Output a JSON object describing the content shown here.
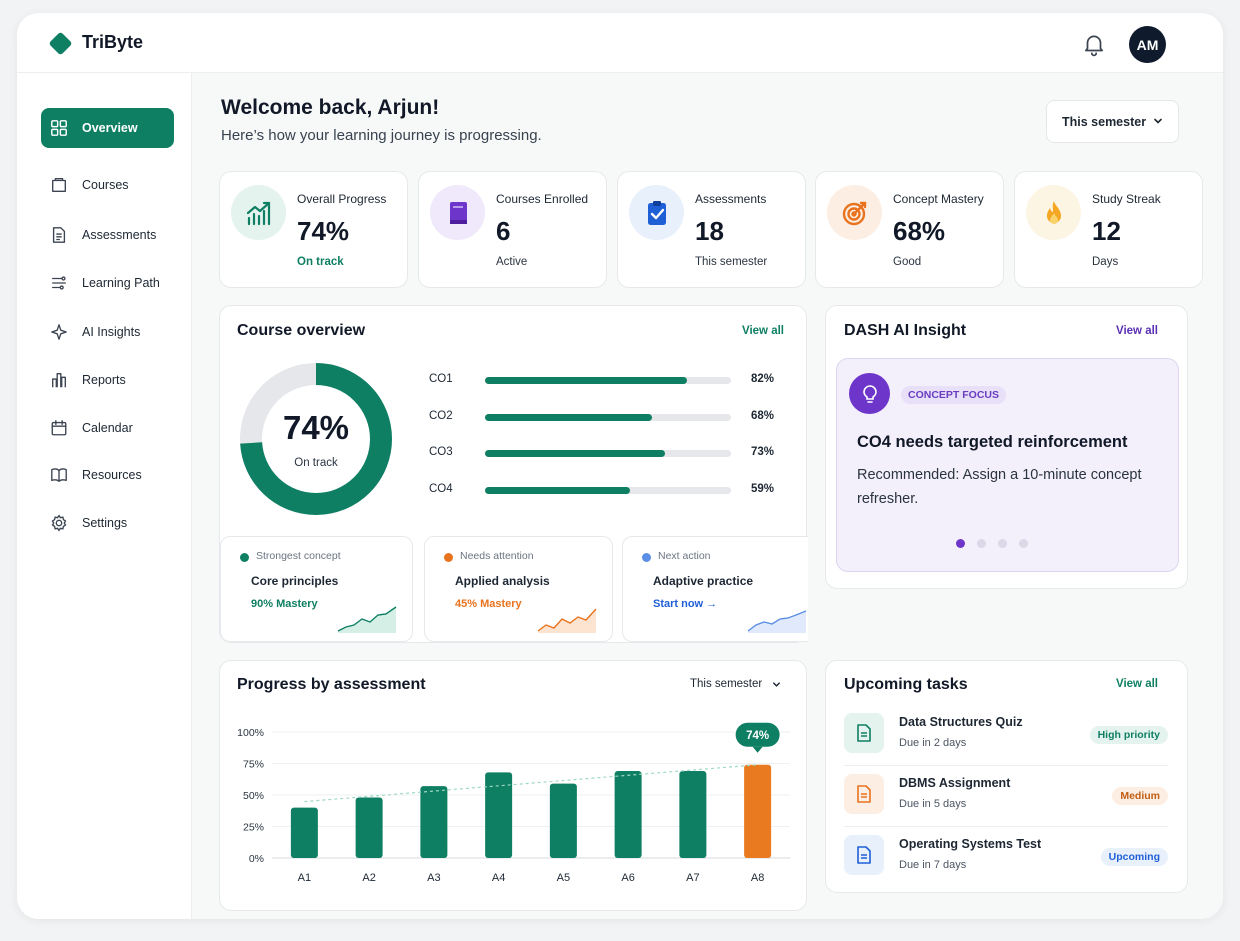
{
  "app": {
    "name": "TriByte",
    "avatar_initials": "AM"
  },
  "sidebar": {
    "items": [
      {
        "label": "Overview",
        "icon": "grid-icon",
        "active": true
      },
      {
        "label": "Courses",
        "icon": "folder-icon"
      },
      {
        "label": "Assessments",
        "icon": "document-icon"
      },
      {
        "label": "Learning Path",
        "icon": "path-icon"
      },
      {
        "label": "AI Insights",
        "icon": "sparkle-icon"
      },
      {
        "label": "Reports",
        "icon": "bar-chart-icon"
      },
      {
        "label": "Calendar",
        "icon": "calendar-icon"
      },
      {
        "label": "Resources",
        "icon": "book-icon"
      },
      {
        "label": "Settings",
        "icon": "gear-icon"
      }
    ]
  },
  "header": {
    "welcome": "Welcome back, Arjun!",
    "subtitle": "Here’s how your learning journey is progressing.",
    "period": "This semester"
  },
  "stats": [
    {
      "label": "Overall Progress",
      "value": "74%",
      "sub": "On track",
      "icon": "trend-up-icon",
      "color": "#0e7f63",
      "bg": "#e4f3ee"
    },
    {
      "label": "Courses Enrolled",
      "value": "6",
      "sub": "Active",
      "icon": "book-icon",
      "color": "#6d35c9",
      "bg": "#efe9fb"
    },
    {
      "label": "Assessments",
      "value": "18",
      "sub": "This semester",
      "icon": "clipboard-check-icon",
      "color": "#1f5fd6",
      "bg": "#e8f0fc"
    },
    {
      "label": "Concept Mastery",
      "value": "68%",
      "sub": "Good",
      "icon": "target-icon",
      "color": "#e8731f",
      "bg": "#fdeee3"
    },
    {
      "label": "Study Streak",
      "value": "12",
      "sub": "Days",
      "icon": "flame-icon",
      "color": "#f5a623",
      "bg": "#fdf5e3"
    }
  ],
  "course_overview": {
    "title": "Course overview",
    "view_all": "View all",
    "donut_value": "74%",
    "donut_progress": 0.74,
    "donut_label": "On track",
    "outcomes": [
      {
        "label": "CO1",
        "pct": "82%",
        "value": 0.82
      },
      {
        "label": "CO2",
        "pct": "68%",
        "value": 0.68
      },
      {
        "label": "CO3",
        "pct": "73%",
        "value": 0.73
      },
      {
        "label": "CO4",
        "pct": "59%",
        "value": 0.59
      }
    ],
    "highlights": [
      {
        "tag": "Strongest concept",
        "title": "Core principles",
        "sub": "90% Mastery",
        "color": "#0e7f63"
      },
      {
        "tag": "Needs attention",
        "title": "Applied analysis",
        "sub": "45% Mastery",
        "color": "#e8731f"
      },
      {
        "tag": "Next action",
        "title": "Adaptive practice",
        "sub": "Start now →",
        "color": "#1f5fd6"
      }
    ]
  },
  "ai_insight": {
    "title": "DASH AI Insight",
    "view_all": "View all",
    "tag": "CONCEPT FOCUS",
    "headline": "CO4 needs targeted reinforcement",
    "text": "Recommended: Assign a 10-minute concept refresher.",
    "active_slide": 1,
    "slides": 4
  },
  "progress_chart": {
    "title": "Progress by assessment",
    "period": "This semester",
    "callout": "74%"
  },
  "chart_data": {
    "type": "bar",
    "categories": [
      "A1",
      "A2",
      "A3",
      "A4",
      "A5",
      "A6",
      "A7",
      "A8"
    ],
    "values": [
      40,
      48,
      57,
      68,
      59,
      69,
      69,
      74
    ],
    "highlight_index": 7,
    "yticks": [
      "0%",
      "25%",
      "50%",
      "75%",
      "100%"
    ],
    "ylim": [
      0,
      100
    ],
    "trend_line": true,
    "colors": {
      "bar": "#0e7f63",
      "highlight": "#ea7a20"
    }
  },
  "tasks": {
    "title": "Upcoming tasks",
    "view_all": "View all",
    "items": [
      {
        "title": "Data Structures Quiz",
        "due": "Due in 2 days",
        "badge": "High priority",
        "color": "#0e7f63",
        "bg": "#e4f3ee"
      },
      {
        "title": "DBMS Assignment",
        "due": "Due in 5 days",
        "badge": "Medium",
        "color": "#e8731f",
        "bg": "#fdeee3"
      },
      {
        "title": "Operating Systems Test",
        "due": "Due in 7 days",
        "badge": "Upcoming",
        "color": "#1f5fd6",
        "bg": "#e8f0fc"
      }
    ]
  }
}
